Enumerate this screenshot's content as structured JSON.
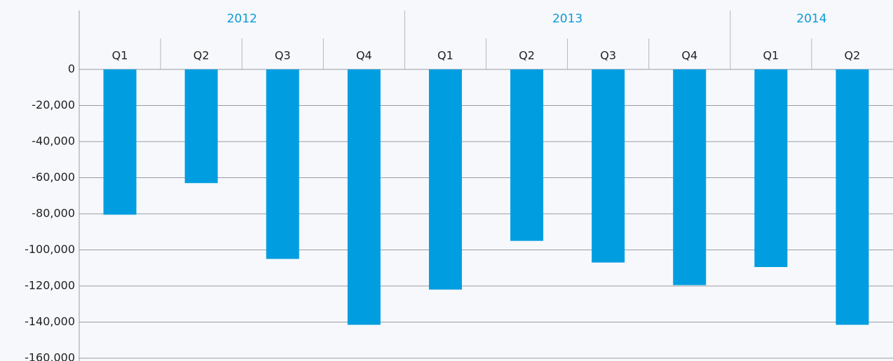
{
  "chart_data": {
    "type": "bar",
    "color": "#009ee0",
    "groups": [
      {
        "label": "2012",
        "categories": [
          "Q1",
          "Q2",
          "Q3",
          "Q4"
        ],
        "values": [
          -80500,
          -63000,
          -105000,
          -141500
        ]
      },
      {
        "label": "2013",
        "categories": [
          "Q1",
          "Q2",
          "Q3",
          "Q4"
        ],
        "values": [
          -122000,
          -95000,
          -107000,
          -119500
        ]
      },
      {
        "label": "2014",
        "categories": [
          "Q1",
          "Q2"
        ],
        "values": [
          -109500,
          -141500
        ]
      }
    ],
    "ylim": [
      -160000,
      0
    ],
    "yticks": [
      0,
      {
        "value": -20000,
        "label": "-20,000"
      },
      {
        "value": -40000,
        "label": "-40,000"
      },
      {
        "value": -60000,
        "label": "-60,000"
      },
      {
        "value": -80000,
        "label": "-80,000"
      },
      {
        "value": -100000,
        "label": "-100,000"
      },
      {
        "value": -120000,
        "label": "-120,000"
      },
      {
        "value": -140000,
        "label": "-140,000"
      },
      {
        "value": -160000,
        "label": "-160,000"
      }
    ],
    "grid": true
  }
}
